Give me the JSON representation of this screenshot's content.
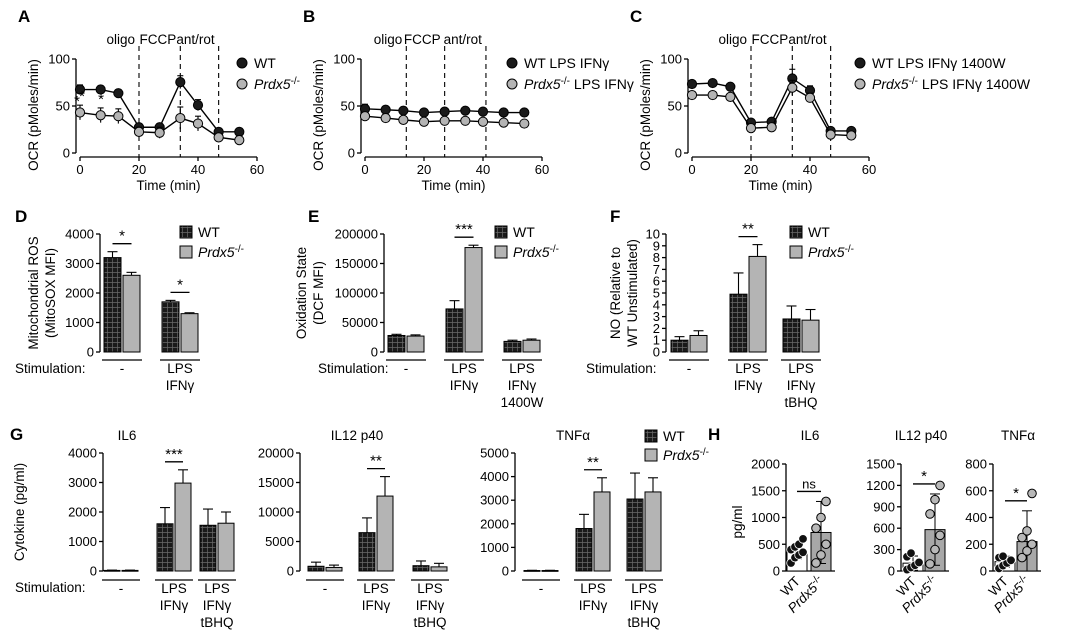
{
  "colors": {
    "wt": "#1a1a1a",
    "ko": "#b4b4b4",
    "line": "#000000"
  },
  "seahorse": [
    {
      "panel": "A",
      "ylabel": "OCR (pMoles/min)",
      "xlabel": "Time (min)",
      "ylim": [
        0,
        100
      ],
      "yticks": [
        "0",
        "50",
        "100"
      ],
      "xlim": [
        0,
        60
      ],
      "xticks": [
        "0",
        "20",
        "40",
        "60"
      ],
      "injections": [
        "oligo",
        "FCCP",
        "ant/rot"
      ],
      "injection_times": [
        20,
        34,
        47
      ],
      "legend": [
        {
          "text": "WT"
        },
        {
          "text": "Prdx5",
          "sup": "-/-"
        }
      ],
      "series": [
        {
          "name": "WT",
          "color": "wt",
          "x": [
            0,
            7,
            13,
            20,
            27,
            34,
            40,
            47,
            54
          ],
          "y": [
            69,
            69,
            65,
            28,
            28,
            77,
            52,
            23,
            23
          ],
          "err": [
            5,
            4,
            4,
            4,
            4,
            7,
            6,
            3,
            3
          ]
        },
        {
          "name": "Prdx5-/-",
          "color": "ko",
          "x": [
            0,
            7,
            13,
            20,
            27,
            34,
            40,
            47,
            54
          ],
          "y": [
            44,
            41,
            40,
            23,
            22,
            38,
            32,
            17,
            14
          ],
          "err": [
            8,
            8,
            8,
            5,
            6,
            12,
            8,
            4,
            5
          ]
        }
      ],
      "annotations": [
        "*",
        "*",
        "*"
      ]
    },
    {
      "panel": "B",
      "ylabel": "OCR (pMoles/min)",
      "xlabel": "Time (min)",
      "ylim": [
        0,
        100
      ],
      "yticks": [
        "0",
        "50",
        "100"
      ],
      "xlim": [
        0,
        60
      ],
      "xticks": [
        "0",
        "20",
        "40",
        "60"
      ],
      "injections": [
        "oligo",
        "FCCP",
        "ant/rot"
      ],
      "injection_times": [
        14,
        27,
        41
      ],
      "legend": [
        {
          "text": "WT LPS IFNγ"
        },
        {
          "text": "Prdx5",
          "sup": "-/-",
          "rest": " LPS IFNγ"
        }
      ],
      "series": [
        {
          "name": "WT LPS IFNγ",
          "color": "wt",
          "x": [
            0,
            7,
            13,
            20,
            27,
            34,
            40,
            47,
            54
          ],
          "y": [
            48,
            47,
            46,
            44,
            45,
            46,
            45,
            44,
            44
          ],
          "err": [
            5,
            4,
            4,
            3,
            3,
            3,
            3,
            3,
            3
          ]
        },
        {
          "name": "Prdx5-/- LPS IFNγ",
          "color": "ko",
          "x": [
            0,
            7,
            13,
            20,
            27,
            34,
            40,
            47,
            54
          ],
          "y": [
            40,
            38,
            36,
            34,
            35,
            35,
            34,
            33,
            32
          ],
          "err": [
            4,
            3,
            3,
            3,
            3,
            3,
            3,
            3,
            3
          ]
        }
      ],
      "annotations": []
    },
    {
      "panel": "C",
      "ylabel": "OCR (pMoles/min)",
      "xlabel": "Time (min)",
      "ylim": [
        0,
        100
      ],
      "yticks": [
        "0",
        "50",
        "100"
      ],
      "xlim": [
        0,
        60
      ],
      "xticks": [
        "0",
        "20",
        "40",
        "60"
      ],
      "injections": [
        "oligo",
        "FCCP",
        "ant/rot"
      ],
      "injection_times": [
        20,
        34,
        47
      ],
      "legend": [
        {
          "text": "WT LPS IFNγ 1400W"
        },
        {
          "text": "Prdx5",
          "sup": "-/-",
          "rest": " LPS IFNγ 1400W"
        }
      ],
      "series": [
        {
          "name": "WT LPS IFNγ 1400W",
          "color": "wt",
          "x": [
            0,
            7,
            13,
            20,
            27,
            34,
            40,
            47,
            54
          ],
          "y": [
            75,
            76,
            72,
            33,
            34,
            81,
            68,
            24,
            24
          ],
          "err": [
            3,
            3,
            3,
            3,
            3,
            10,
            5,
            2,
            2
          ]
        },
        {
          "name": "Prdx5-/- LPS IFNγ 1400W",
          "color": "ko",
          "x": [
            0,
            7,
            13,
            20,
            27,
            34,
            40,
            47,
            54
          ],
          "y": [
            63,
            63,
            61,
            27,
            28,
            71,
            60,
            20,
            19
          ],
          "err": [
            3,
            3,
            3,
            3,
            3,
            8,
            5,
            2,
            2
          ]
        }
      ],
      "annotations": []
    }
  ],
  "bars_top": [
    {
      "panel": "D",
      "ylabel": [
        "Mitochondrial ROS",
        "(MitoSOX MFI)"
      ],
      "ylim": [
        0,
        4000
      ],
      "yticks": [
        "0",
        "1000",
        "2000",
        "3000",
        "4000"
      ],
      "legend": [
        {
          "text": "WT"
        },
        {
          "text": "Prdx5",
          "sup": "-/-"
        }
      ],
      "stim_label": "Stimulation:",
      "groups": [
        {
          "label": [
            "-"
          ],
          "wt": 3200,
          "wt_err": 200,
          "ko": 2600,
          "ko_err": 100,
          "sig": "*"
        },
        {
          "label": [
            "LPS",
            "IFNγ"
          ],
          "wt": 1700,
          "wt_err": 50,
          "ko": 1300,
          "ko_err": 30,
          "sig": "*"
        }
      ]
    },
    {
      "panel": "E",
      "ylabel": [
        "Oxidation State",
        "(DCF MFI)"
      ],
      "ylim": [
        0,
        200000
      ],
      "yticks": [
        "0",
        "50000",
        "100000",
        "150000",
        "200000"
      ],
      "legend": [
        {
          "text": "WT"
        },
        {
          "text": "Prdx5",
          "sup": "-/-"
        }
      ],
      "stim_label": "Stimulation:",
      "groups": [
        {
          "label": [
            "-"
          ],
          "wt": 28000,
          "wt_err": 2000,
          "ko": 27000,
          "ko_err": 2000,
          "sig": ""
        },
        {
          "label": [
            "LPS",
            "IFNγ"
          ],
          "wt": 73000,
          "wt_err": 14000,
          "ko": 177000,
          "ko_err": 4000,
          "sig": "***"
        },
        {
          "label": [
            "LPS",
            "IFNγ",
            "1400W"
          ],
          "wt": 18000,
          "wt_err": 2000,
          "ko": 20000,
          "ko_err": 2000,
          "sig": ""
        }
      ]
    },
    {
      "panel": "F",
      "ylabel": [
        "NO (Relative to",
        "WT Unstimulated)"
      ],
      "ylim": [
        0,
        10
      ],
      "yticks": [
        "0",
        "1",
        "2",
        "3",
        "4",
        "5",
        "6",
        "7",
        "8",
        "9",
        "10"
      ],
      "legend": [
        {
          "text": "WT"
        },
        {
          "text": "Prdx5",
          "sup": "-/-"
        }
      ],
      "stim_label": "Stimulation:",
      "groups": [
        {
          "label": [
            "-"
          ],
          "wt": 1.0,
          "wt_err": 0.3,
          "ko": 1.4,
          "ko_err": 0.4,
          "sig": ""
        },
        {
          "label": [
            "LPS",
            "IFNγ"
          ],
          "wt": 4.9,
          "wt_err": 1.8,
          "ko": 8.1,
          "ko_err": 1.0,
          "sig": "**"
        },
        {
          "label": [
            "LPS",
            "IFNγ",
            "tBHQ"
          ],
          "wt": 2.8,
          "wt_err": 1.1,
          "ko": 2.7,
          "ko_err": 0.9,
          "sig": ""
        }
      ]
    }
  ],
  "cytokines": {
    "panel": "G",
    "ylabel": "Cytokine (pg/ml)",
    "stim_label": "Stimulation:",
    "legend": [
      {
        "text": "WT"
      },
      {
        "text": "Prdx5",
        "sup": "-/-"
      }
    ],
    "labels": [
      [
        "-"
      ],
      [
        "LPS",
        "IFNγ"
      ],
      [
        "LPS",
        "IFNγ",
        "tBHQ"
      ]
    ],
    "charts": [
      {
        "title": "IL6",
        "ylim": [
          0,
          4000
        ],
        "yticks": [
          "0",
          "1000",
          "2000",
          "3000",
          "4000"
        ],
        "wt": [
          20,
          1600,
          1550
        ],
        "wt_err": [
          10,
          550,
          550
        ],
        "ko": [
          20,
          2980,
          1620
        ],
        "ko_err": [
          10,
          450,
          380
        ],
        "sig": [
          "",
          "***",
          ""
        ]
      },
      {
        "title": "IL12 p40",
        "ylim": [
          0,
          20000
        ],
        "yticks": [
          "0",
          "5000",
          "10000",
          "15000",
          "20000"
        ],
        "wt": [
          800,
          6500,
          900
        ],
        "wt_err": [
          700,
          2500,
          800
        ],
        "ko": [
          600,
          12700,
          700
        ],
        "ko_err": [
          400,
          3300,
          600
        ],
        "sig": [
          "",
          "**",
          ""
        ]
      },
      {
        "title": "TNFα",
        "ylim": [
          0,
          5000
        ],
        "yticks": [
          "0",
          "1000",
          "2000",
          "3000",
          "4000",
          "5000"
        ],
        "wt": [
          20,
          1800,
          3050
        ],
        "wt_err": [
          10,
          600,
          1100
        ],
        "ko": [
          20,
          3350,
          3350
        ],
        "ko_err": [
          10,
          600,
          600
        ],
        "sig": [
          "",
          "**",
          ""
        ]
      }
    ]
  },
  "invivo": {
    "panel": "H",
    "ylabel": "pg/ml",
    "xlabels": [
      {
        "text": "WT"
      },
      {
        "text": "Prdx5",
        "sup": "-/-"
      }
    ],
    "charts": [
      {
        "title": "IL6",
        "ylim": [
          0,
          2000
        ],
        "yticks": [
          "0",
          "500",
          "1000",
          "1500",
          "2000"
        ],
        "wt_mean": 360,
        "wt_err": 130,
        "ko_mean": 720,
        "ko_err": 580,
        "sig": "ns",
        "wt_points": [
          150,
          250,
          300,
          350,
          400,
          450,
          500,
          600
        ],
        "ko_points": [
          150,
          300,
          500,
          800,
          1000,
          1300
        ]
      },
      {
        "title": "IL12 p40",
        "ylim": [
          0,
          1500
        ],
        "yticks": [
          "0",
          "300",
          "600",
          "900",
          "1200",
          "1500"
        ],
        "wt_mean": 110,
        "wt_err": 100,
        "ko_mean": 580,
        "ko_err": 500,
        "sig": "*",
        "wt_points": [
          20,
          50,
          80,
          120,
          200,
          250
        ],
        "ko_points": [
          100,
          300,
          500,
          800,
          1000,
          1200
        ]
      },
      {
        "title": "TNFα",
        "ylim": [
          0,
          800
        ],
        "yticks": [
          "0",
          "200",
          "400",
          "600",
          "800"
        ],
        "wt_mean": 70,
        "wt_err": 40,
        "ko_mean": 220,
        "ko_err": 230,
        "sig": "*",
        "wt_points": [
          20,
          40,
          60,
          80,
          100,
          110
        ],
        "ko_points": [
          100,
          150,
          200,
          250,
          300,
          580
        ]
      }
    ]
  },
  "chart_data": [
    {
      "type": "line",
      "panel": "A",
      "title": "",
      "xlabel": "Time (min)",
      "ylabel": "OCR (pMoles/min)",
      "ylim": [
        0,
        100
      ],
      "x": [
        0,
        7,
        13,
        20,
        27,
        34,
        40,
        47,
        54
      ],
      "series": [
        {
          "name": "WT",
          "values": [
            69,
            69,
            65,
            28,
            28,
            77,
            52,
            23,
            23
          ]
        },
        {
          "name": "Prdx5-/-",
          "values": [
            44,
            41,
            40,
            23,
            22,
            38,
            32,
            17,
            14
          ]
        }
      ]
    },
    {
      "type": "line",
      "panel": "B",
      "title": "",
      "xlabel": "Time (min)",
      "ylabel": "OCR (pMoles/min)",
      "ylim": [
        0,
        100
      ],
      "x": [
        0,
        7,
        13,
        20,
        27,
        34,
        40,
        47,
        54
      ],
      "series": [
        {
          "name": "WT LPS IFNγ",
          "values": [
            48,
            47,
            46,
            44,
            45,
            46,
            45,
            44,
            44
          ]
        },
        {
          "name": "Prdx5-/- LPS IFNγ",
          "values": [
            40,
            38,
            36,
            34,
            35,
            35,
            34,
            33,
            32
          ]
        }
      ]
    },
    {
      "type": "line",
      "panel": "C",
      "title": "",
      "xlabel": "Time (min)",
      "ylabel": "OCR (pMoles/min)",
      "ylim": [
        0,
        100
      ],
      "x": [
        0,
        7,
        13,
        20,
        27,
        34,
        40,
        47,
        54
      ],
      "series": [
        {
          "name": "WT LPS IFNγ 1400W",
          "values": [
            75,
            76,
            72,
            33,
            34,
            81,
            68,
            24,
            24
          ]
        },
        {
          "name": "Prdx5-/- LPS IFNγ 1400W",
          "values": [
            63,
            63,
            61,
            27,
            28,
            71,
            60,
            20,
            19
          ]
        }
      ]
    },
    {
      "type": "bar",
      "panel": "D",
      "categories": [
        "-",
        "LPS IFNγ"
      ],
      "ylabel": "Mitochondrial ROS (MitoSOX MFI)",
      "ylim": [
        0,
        4000
      ],
      "series": [
        {
          "name": "WT",
          "values": [
            3200,
            1700
          ]
        },
        {
          "name": "Prdx5-/-",
          "values": [
            2600,
            1300
          ]
        }
      ]
    },
    {
      "type": "bar",
      "panel": "E",
      "categories": [
        "-",
        "LPS IFNγ",
        "LPS IFNγ 1400W"
      ],
      "ylabel": "Oxidation State (DCF MFI)",
      "ylim": [
        0,
        200000
      ],
      "series": [
        {
          "name": "WT",
          "values": [
            28000,
            73000,
            18000
          ]
        },
        {
          "name": "Prdx5-/-",
          "values": [
            27000,
            177000,
            20000
          ]
        }
      ]
    },
    {
      "type": "bar",
      "panel": "F",
      "categories": [
        "-",
        "LPS IFNγ",
        "LPS IFNγ tBHQ"
      ],
      "ylabel": "NO (Relative to WT Unstimulated)",
      "ylim": [
        0,
        10
      ],
      "series": [
        {
          "name": "WT",
          "values": [
            1.0,
            4.9,
            2.8
          ]
        },
        {
          "name": "Prdx5-/-",
          "values": [
            1.4,
            8.1,
            2.7
          ]
        }
      ]
    },
    {
      "type": "bar",
      "panel": "G",
      "title": "IL6",
      "categories": [
        "-",
        "LPS IFNγ",
        "LPS IFNγ tBHQ"
      ],
      "ylabel": "Cytokine (pg/ml)",
      "ylim": [
        0,
        4000
      ],
      "series": [
        {
          "name": "WT",
          "values": [
            20,
            1600,
            1550
          ]
        },
        {
          "name": "Prdx5-/-",
          "values": [
            20,
            2980,
            1620
          ]
        }
      ]
    },
    {
      "type": "bar",
      "panel": "G",
      "title": "IL12 p40",
      "categories": [
        "-",
        "LPS IFNγ",
        "LPS IFNγ tBHQ"
      ],
      "ylabel": "Cytokine (pg/ml)",
      "ylim": [
        0,
        20000
      ],
      "series": [
        {
          "name": "WT",
          "values": [
            800,
            6500,
            900
          ]
        },
        {
          "name": "Prdx5-/-",
          "values": [
            600,
            12700,
            700
          ]
        }
      ]
    },
    {
      "type": "bar",
      "panel": "G",
      "title": "TNFα",
      "categories": [
        "-",
        "LPS IFNγ",
        "LPS IFNγ tBHQ"
      ],
      "ylabel": "Cytokine (pg/ml)",
      "ylim": [
        0,
        5000
      ],
      "series": [
        {
          "name": "WT",
          "values": [
            20,
            1800,
            3050
          ]
        },
        {
          "name": "Prdx5-/-",
          "values": [
            20,
            3350,
            3350
          ]
        }
      ]
    },
    {
      "type": "bar",
      "panel": "H",
      "title": "IL6",
      "categories": [
        "WT",
        "Prdx5-/-"
      ],
      "ylabel": "pg/ml",
      "ylim": [
        0,
        2000
      ],
      "values": [
        360,
        720
      ]
    },
    {
      "type": "bar",
      "panel": "H",
      "title": "IL12 p40",
      "categories": [
        "WT",
        "Prdx5-/-"
      ],
      "ylabel": "pg/ml",
      "ylim": [
        0,
        1500
      ],
      "values": [
        110,
        580
      ]
    },
    {
      "type": "bar",
      "panel": "H",
      "title": "TNFα",
      "categories": [
        "WT",
        "Prdx5-/-"
      ],
      "ylabel": "pg/ml",
      "ylim": [
        0,
        800
      ],
      "values": [
        70,
        220
      ]
    }
  ]
}
